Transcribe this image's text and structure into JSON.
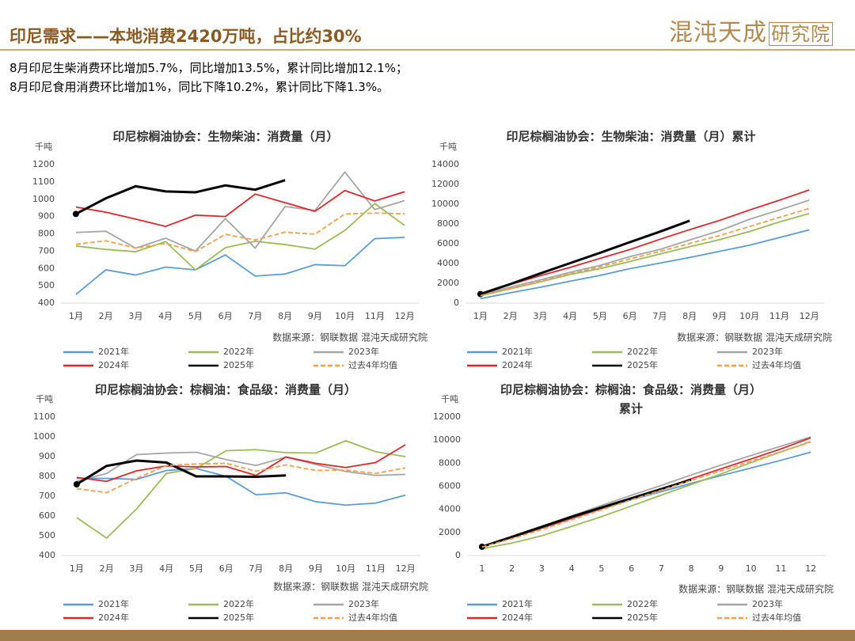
{
  "header": {
    "title": "印尼需求——本地消费2420万吨，占比约30%",
    "logo_main": "混沌天成",
    "logo_sub": "研究院"
  },
  "notes": [
    "8月印尼生柴消费环比增加5.7%，同比增加13.5%，累计同比增加12.1%；",
    "8月印尼食用消费环比增加1%，同比下降10.2%，累计同比下降1.3%。"
  ],
  "chart_data": [
    {
      "type": "line",
      "title": [
        "印尼棕榈油协会：生物柴油：消费量（月）"
      ],
      "y_unit": "千吨",
      "source": "数据来源：钢联数据  混沌天成研究院",
      "categories": [
        "1月",
        "2月",
        "3月",
        "4月",
        "5月",
        "6月",
        "7月",
        "8月",
        "9月",
        "10月",
        "11月",
        "12月"
      ],
      "ylim": [
        400,
        1200
      ],
      "yticks": [
        400,
        500,
        600,
        700,
        800,
        900,
        1000,
        1100,
        1200
      ],
      "series": [
        {
          "name": "2021年",
          "color": "#5b9bd5",
          "dashed": false,
          "values": [
            450,
            592,
            562,
            608,
            592,
            678,
            556,
            568,
            622,
            616,
            772,
            780
          ]
        },
        {
          "name": "2022年",
          "color": "#9bbb59",
          "dashed": false,
          "values": [
            730,
            710,
            697,
            755,
            592,
            720,
            757,
            738,
            712,
            820,
            975,
            848
          ]
        },
        {
          "name": "2023年",
          "color": "#a5a5a5",
          "dashed": false,
          "values": [
            808,
            815,
            717,
            775,
            700,
            888,
            718,
            958,
            935,
            1157,
            940,
            992
          ]
        },
        {
          "name": "2024年",
          "color": "#e0242b",
          "dashed": false,
          "values": [
            955,
            925,
            885,
            843,
            908,
            900,
            1030,
            980,
            930,
            1050,
            990,
            1043
          ]
        },
        {
          "name": "2025年",
          "color": "#000000",
          "dashed": false,
          "values": [
            915,
            1005,
            1075,
            1045,
            1040,
            1080,
            1055,
            1110,
            null,
            null,
            null,
            null
          ]
        },
        {
          "name": "过去4年均值",
          "color": "#f0a050",
          "dashed": true,
          "values": [
            740,
            760,
            718,
            745,
            698,
            797,
            765,
            810,
            798,
            915,
            920,
            916
          ]
        }
      ]
    },
    {
      "type": "line",
      "title": [
        "印尼棕榈油协会：生物柴油：消费量（月）累计"
      ],
      "y_unit": "千吨",
      "source": "数据来源：钢联数据  混沌天成研究院",
      "categories": [
        "1月",
        "2月",
        "3月",
        "4月",
        "5月",
        "6月",
        "7月",
        "8月",
        "9月",
        "10月",
        "11月",
        "12月"
      ],
      "ylim": [
        0,
        14000
      ],
      "yticks": [
        0,
        2000,
        4000,
        6000,
        8000,
        10000,
        12000,
        14000
      ],
      "series": [
        {
          "name": "2021年",
          "color": "#5b9bd5",
          "dashed": false,
          "values": [
            450,
            1040,
            1600,
            2210,
            2800,
            3480,
            4040,
            4610,
            5230,
            5850,
            6620,
            7400
          ]
        },
        {
          "name": "2022年",
          "color": "#9bbb59",
          "dashed": false,
          "values": [
            730,
            1440,
            2140,
            2890,
            3480,
            4200,
            4960,
            5700,
            6410,
            7230,
            8200,
            9050
          ]
        },
        {
          "name": "2023年",
          "color": "#a5a5a5",
          "dashed": false,
          "values": [
            810,
            1620,
            2340,
            3110,
            3810,
            4700,
            5420,
            6380,
            7310,
            8470,
            9410,
            10400
          ]
        },
        {
          "name": "2024年",
          "color": "#e0242b",
          "dashed": false,
          "values": [
            955,
            1880,
            2765,
            3610,
            4515,
            5415,
            6445,
            7425,
            8355,
            9405,
            10395,
            11440
          ]
        },
        {
          "name": "2025年",
          "color": "#000000",
          "dashed": false,
          "values": [
            915,
            1920,
            2995,
            4040,
            5080,
            6160,
            7215,
            8325,
            null,
            null,
            null,
            null
          ]
        },
        {
          "name": "过去4年均值",
          "color": "#f0a050",
          "dashed": true,
          "values": [
            740,
            1500,
            2220,
            2960,
            3660,
            4460,
            5220,
            6030,
            6830,
            7740,
            8660,
            9570
          ]
        }
      ]
    },
    {
      "type": "line",
      "title": [
        "印尼棕榈油协会：棕榈油：食品级：消费量（月）"
      ],
      "y_unit": "千吨",
      "source": "数据来源：钢联数据  混沌天成研究院",
      "categories": [
        "1月",
        "2月",
        "3月",
        "4月",
        "5月",
        "6月",
        "7月",
        "8月",
        "9月",
        "10月",
        "11月",
        "12月"
      ],
      "ylim": [
        400,
        1100
      ],
      "yticks": [
        400,
        500,
        600,
        700,
        800,
        900,
        1000,
        1100
      ],
      "series": [
        {
          "name": "2021年",
          "color": "#5b9bd5",
          "dashed": false,
          "values": [
            790,
            790,
            785,
            830,
            840,
            800,
            707,
            717,
            672,
            655,
            665,
            705
          ]
        },
        {
          "name": "2022年",
          "color": "#9bbb59",
          "dashed": false,
          "values": [
            592,
            488,
            635,
            815,
            840,
            930,
            935,
            920,
            918,
            980,
            925,
            900
          ]
        },
        {
          "name": "2023年",
          "color": "#a5a5a5",
          "dashed": false,
          "values": [
            775,
            815,
            910,
            918,
            922,
            885,
            855,
            898,
            860,
            825,
            805,
            810
          ]
        },
        {
          "name": "2024年",
          "color": "#e0242b",
          "dashed": false,
          "values": [
            795,
            775,
            828,
            853,
            848,
            850,
            805,
            898,
            866,
            845,
            870,
            960
          ]
        },
        {
          "name": "2025年",
          "color": "#000000",
          "dashed": false,
          "values": [
            760,
            853,
            880,
            870,
            800,
            800,
            798,
            805,
            null,
            null,
            null,
            null
          ]
        },
        {
          "name": "过去4年均值",
          "color": "#f0a050",
          "dashed": true,
          "values": [
            738,
            718,
            790,
            855,
            863,
            866,
            826,
            858,
            830,
            832,
            815,
            843
          ]
        }
      ]
    },
    {
      "type": "line",
      "title": [
        "印尼棕榈油协会：棕榈油：食品级：消费量（月）",
        "累计"
      ],
      "y_unit": "千吨",
      "source": "数据来源：钢联数据  混沌天成研究院",
      "categories": [
        "1",
        "2",
        "3",
        "4",
        "5",
        "6",
        "7",
        "8",
        "9",
        "10",
        "11",
        "12"
      ],
      "ylim": [
        0,
        12000
      ],
      "yticks": [
        0,
        2000,
        4000,
        6000,
        8000,
        10000,
        12000
      ],
      "series": [
        {
          "name": "2021年",
          "color": "#5b9bd5",
          "dashed": false,
          "values": [
            790,
            1580,
            2365,
            3195,
            4035,
            4835,
            5540,
            6260,
            6930,
            7585,
            8250,
            8955
          ]
        },
        {
          "name": "2022年",
          "color": "#9bbb59",
          "dashed": false,
          "values": [
            590,
            1080,
            1715,
            2530,
            3370,
            4300,
            5235,
            6155,
            7075,
            8055,
            8980,
            9880
          ]
        },
        {
          "name": "2023年",
          "color": "#a5a5a5",
          "dashed": false,
          "values": [
            775,
            1590,
            2500,
            3420,
            4340,
            5225,
            6080,
            6980,
            7840,
            8665,
            9470,
            10280
          ]
        },
        {
          "name": "2024年",
          "color": "#e0242b",
          "dashed": false,
          "values": [
            795,
            1570,
            2400,
            3250,
            4100,
            4950,
            5755,
            6655,
            7520,
            8365,
            9235,
            10195
          ]
        },
        {
          "name": "2025年",
          "color": "#000000",
          "dashed": false,
          "values": [
            760,
            1613,
            2493,
            3363,
            4163,
            4963,
            5761,
            6566,
            null,
            null,
            null,
            null
          ]
        },
        {
          "name": "过去4年均值",
          "color": "#f0a050",
          "dashed": true,
          "values": [
            738,
            1456,
            2246,
            3101,
            3964,
            4830,
            5656,
            6514,
            7344,
            8176,
            8991,
            9834
          ]
        }
      ]
    }
  ]
}
